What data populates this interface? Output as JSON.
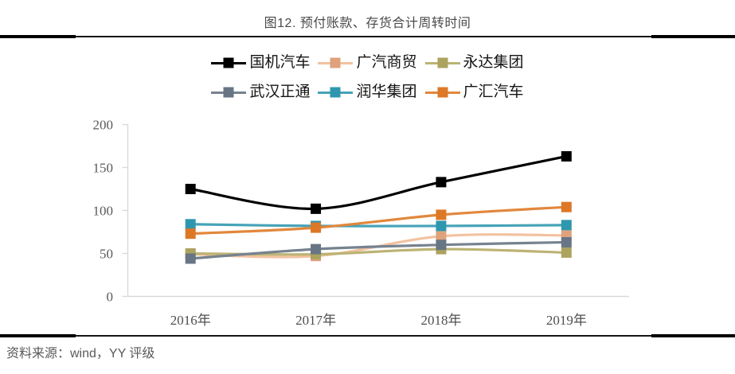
{
  "figure": {
    "title": "图12. 预付账款、存货合计周转时间",
    "source": "资料来源：wind，YY 评级"
  },
  "style": {
    "background": "#ffffff",
    "rule_color": "#161616",
    "rule_thick_color": "#000000",
    "axis_color": "#d9d9d9",
    "title_color": "#4a4a4a",
    "source_color": "#595959",
    "ytick_color": "#595959",
    "xtick_color": "#4f4f4f",
    "legend_text_color": "#141414"
  },
  "chart_data": {
    "type": "line",
    "title": "图12. 预付账款、存货合计周转时间",
    "categories": [
      "2016年",
      "2017年",
      "2018年",
      "2019年"
    ],
    "series": [
      {
        "name": "国机汽车",
        "color": "#000000",
        "line_color": "#000000",
        "values": [
          125,
          102,
          133,
          163
        ]
      },
      {
        "name": "广汽商贸",
        "color": "#DFA27C",
        "line_color": "#F2C2A0",
        "values": [
          49,
          47,
          70,
          71
        ]
      },
      {
        "name": "永达集团",
        "color": "#ACA35F",
        "line_color": "#BCB374",
        "values": [
          50,
          49,
          55,
          51
        ]
      },
      {
        "name": "武汉正通",
        "color": "#687585",
        "line_color": "#76828F",
        "values": [
          44,
          55,
          60,
          63
        ]
      },
      {
        "name": "润华集团",
        "color": "#2E97AE",
        "line_color": "#46A3B8",
        "values": [
          84,
          82,
          82,
          83
        ]
      },
      {
        "name": "广汇汽车",
        "color": "#DD7826",
        "line_color": "#E2873C",
        "values": [
          73,
          80,
          95,
          104
        ]
      }
    ],
    "legend_rows": [
      [
        "国机汽车",
        "广汽商贸",
        "永达集团"
      ],
      [
        "武汉正通",
        "润华集团",
        "广汇汽车"
      ]
    ],
    "legend_position": "top",
    "grid": false,
    "xlabel": "",
    "ylabel": "",
    "ylim": [
      0,
      200
    ],
    "yticks": [
      0,
      50,
      100,
      150,
      200
    ]
  }
}
